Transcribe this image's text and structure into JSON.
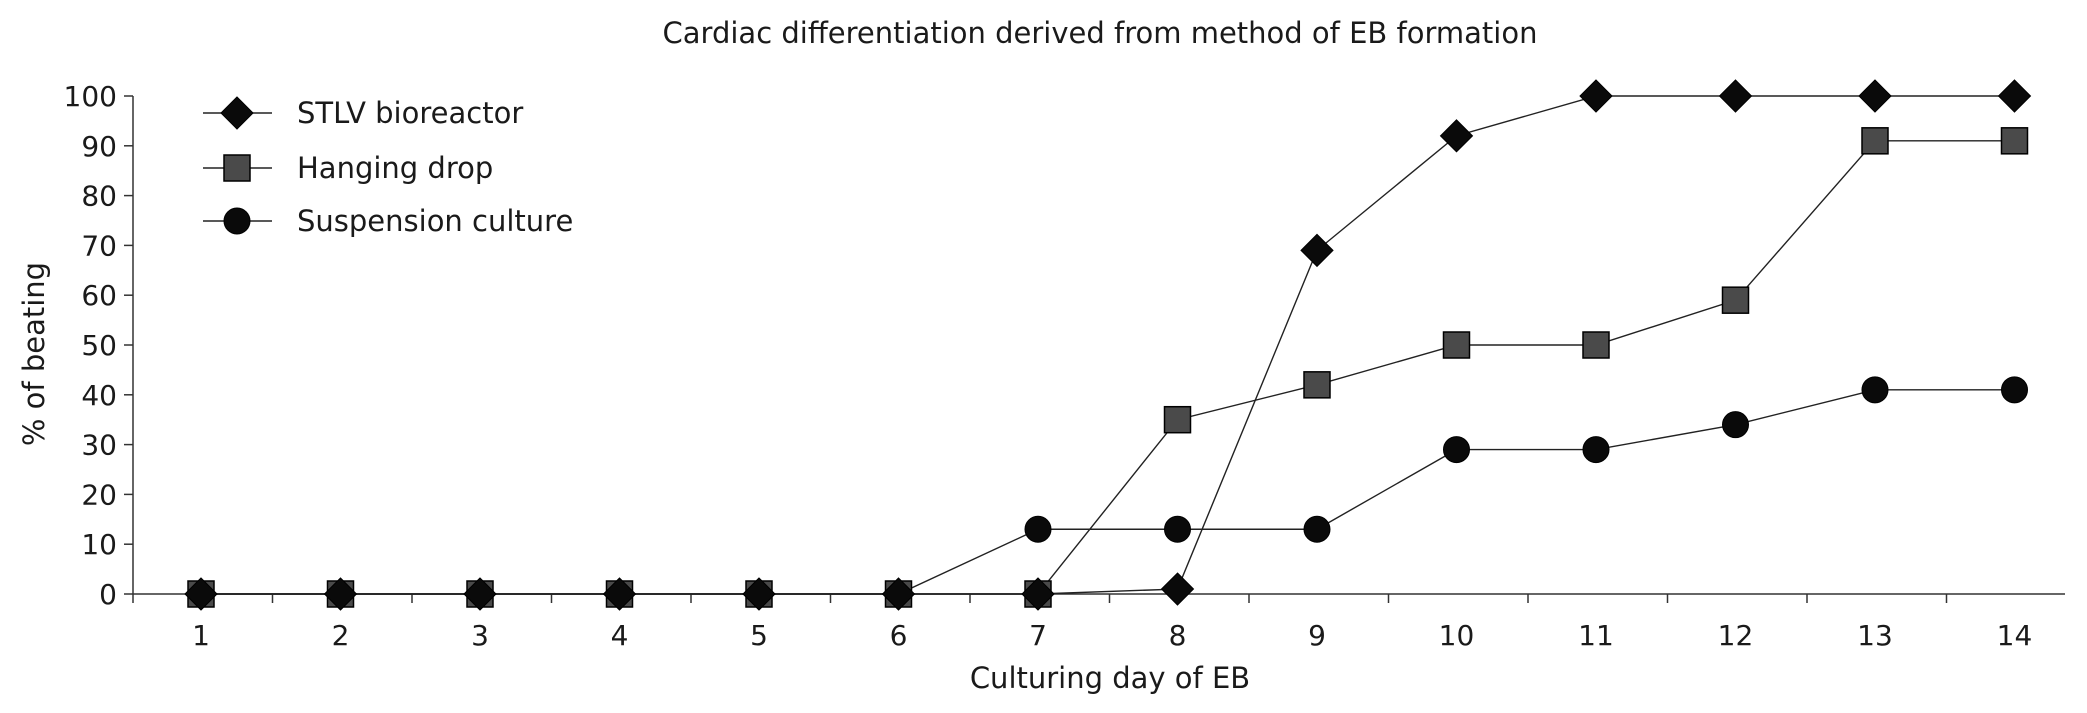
{
  "chart_data": {
    "type": "line",
    "title": "Cardiac differentiation derived from method of EB formation",
    "xlabel": "Culturing day of EB",
    "ylabel": "% of beating",
    "x": [
      1,
      2,
      3,
      4,
      5,
      6,
      7,
      8,
      9,
      10,
      11,
      12,
      13,
      14
    ],
    "x_tick_labels": [
      "1",
      "2",
      "3",
      "4",
      "5",
      "6",
      "7",
      "8",
      "9",
      "10",
      "11",
      "12",
      "13",
      "14"
    ],
    "ylim": [
      0,
      100
    ],
    "y_ticks": [
      0,
      10,
      20,
      30,
      40,
      50,
      60,
      70,
      80,
      90,
      100
    ],
    "y_tick_labels": [
      "0",
      "10",
      "20",
      "30",
      "40",
      "50",
      "60",
      "70",
      "80",
      "90",
      "100"
    ],
    "grid": false,
    "legend_position": "top-left",
    "series": [
      {
        "name": "STLV bioreactor",
        "marker": "diamond",
        "color": "#0a0a0a",
        "values": [
          0,
          0,
          0,
          0,
          0,
          0,
          0,
          1,
          69,
          92,
          100,
          100,
          100,
          100
        ]
      },
      {
        "name": "Hanging drop",
        "marker": "square",
        "color": "#4a4a4a",
        "values": [
          0,
          0,
          0,
          0,
          0,
          0,
          0,
          35,
          42,
          50,
          50,
          59,
          91,
          91
        ]
      },
      {
        "name": "Suspension culture",
        "marker": "circle",
        "color": "#0a0a0a",
        "values": [
          0,
          0,
          0,
          0,
          0,
          0,
          13,
          13,
          13,
          29,
          29,
          34,
          41,
          41
        ]
      }
    ]
  }
}
